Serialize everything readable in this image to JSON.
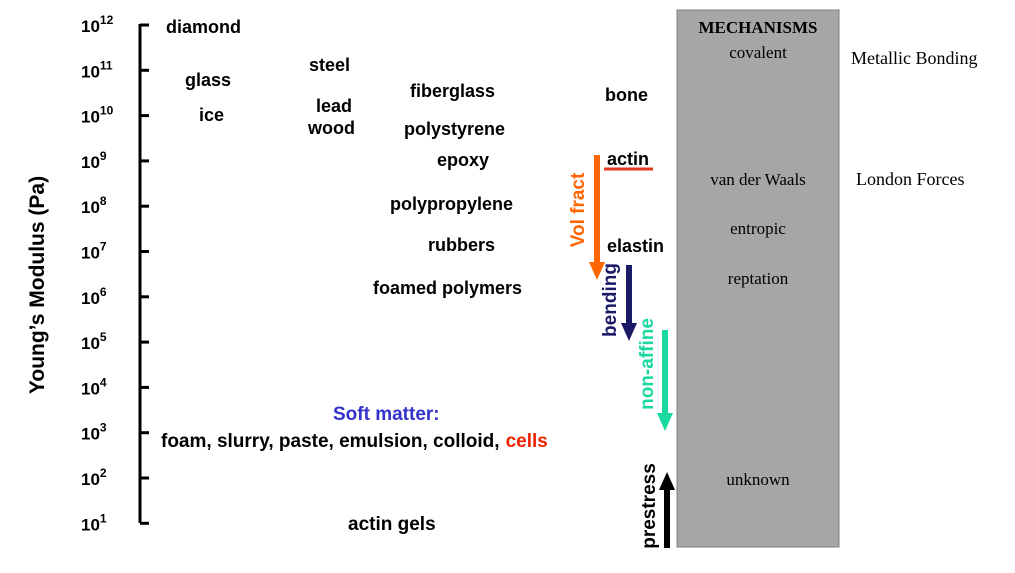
{
  "axis": {
    "label": "Young’s Modulus (Pa)",
    "ticks": [
      {
        "base": "10",
        "exp": "12"
      },
      {
        "base": "10",
        "exp": "11"
      },
      {
        "base": "10",
        "exp": "10"
      },
      {
        "base": "10",
        "exp": "9"
      },
      {
        "base": "10",
        "exp": "8"
      },
      {
        "base": "10",
        "exp": "7"
      },
      {
        "base": "10",
        "exp": "6"
      },
      {
        "base": "10",
        "exp": "5"
      },
      {
        "base": "10",
        "exp": "4"
      },
      {
        "base": "10",
        "exp": "3"
      },
      {
        "base": "10",
        "exp": "2"
      },
      {
        "base": "10",
        "exp": "1"
      }
    ]
  },
  "materials": {
    "diamond": "diamond",
    "glass": "glass",
    "ice": "ice",
    "steel": "steel",
    "lead": "lead",
    "wood": "wood",
    "fiberglass": "fiberglass",
    "polystyrene": "polystyrene",
    "epoxy": "epoxy",
    "polypropylene": "polypropylene",
    "rubbers": "rubbers",
    "foamed_polymers": "foamed polymers",
    "bone": "bone",
    "actin": "actin",
    "elastin": "elastin",
    "actin_gels": "actin gels"
  },
  "soft_matter": {
    "heading": "Soft matter:",
    "items": "foam, slurry, paste, emulsion, colloid,",
    "cells": "cells"
  },
  "arrows": {
    "vol_fract": "Vol fract",
    "bending": "bending",
    "non_affine": "non-affine",
    "prestress": "prestress"
  },
  "mechanisms": {
    "heading": "MECHANISMS",
    "covalent": "covalent",
    "van_der_waals": "van der Waals",
    "entropic": "entropic",
    "reptation": "reptation",
    "unknown": "unknown"
  },
  "side_notes": {
    "metallic": "Metallic Bonding",
    "london": "London Forces"
  },
  "colors": {
    "text": "#000000",
    "panel_fill": "#a6a6a6",
    "panel_stroke": "#7f7f7f",
    "actin_line": "#e63a1e",
    "vol_fract": "#ff6600",
    "bending": "#1a1a66",
    "non_affine": "#1ad9a0",
    "soft_matter_heading": "#3333cc",
    "cells": "#ee2200",
    "prestress": "#000000"
  }
}
